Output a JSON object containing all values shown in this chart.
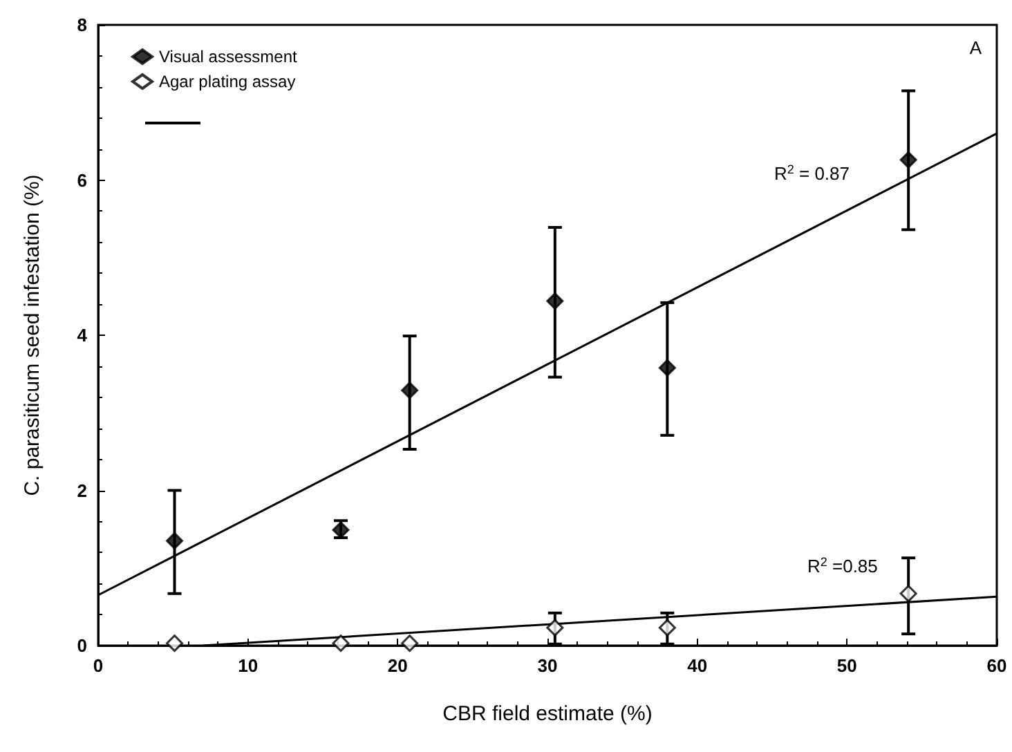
{
  "chart_data": {
    "type": "scatter",
    "xlabel": "CBR field estimate (%)",
    "ylabel": "C. parasiticum seed infestation (%)",
    "xlim": [
      0,
      60
    ],
    "xticks": [
      0,
      10,
      20,
      30,
      40,
      50,
      60
    ],
    "ylim": [
      0,
      8
    ],
    "yticks": [
      0,
      2,
      4,
      6,
      8
    ],
    "grid": false,
    "legend": "top left",
    "series": [
      {
        "name": "Visual assessment",
        "color": "#000000",
        "marker": "diamond",
        "x": [
          5.1,
          16.2,
          20.8,
          30.5,
          38.0,
          54.1
        ],
        "values": [
          1.35,
          1.49,
          3.29,
          4.44,
          3.58,
          6.26
        ],
        "errors": [
          [
            0.67,
            2.0
          ],
          [
            1.39,
            1.61
          ],
          [
            2.53,
            3.99
          ],
          [
            3.46,
            5.39
          ],
          [
            2.71,
            4.42
          ],
          [
            5.36,
            7.15
          ]
        ]
      },
      {
        "name": "Agar plating assay",
        "color": "#ffffff",
        "marker": "diamond",
        "x": [
          5.1,
          16.2,
          20.8,
          30.5,
          38.0,
          54.1
        ],
        "values": [
          0.03,
          0.03,
          0.03,
          0.23,
          0.23,
          0.67
        ],
        "errors": [
          null,
          null,
          null,
          [
            0.02,
            0.42
          ],
          [
            0.02,
            0.42
          ],
          [
            0.15,
            1.13
          ]
        ]
      },
      {
        "type": "line",
        "color": "#000000",
        "marker": "none",
        "line_style": "solid",
        "x": [
          0,
          60
        ],
        "values": [
          0.65,
          6.6
        ]
      },
      {
        "type": "line",
        "color": "#000000",
        "marker": "none",
        "line_style": "solid",
        "x": [
          7,
          60
        ],
        "values": [
          0,
          0.63
        ]
      }
    ],
    "annotations": [
      "A",
      "R$^{2}$ = 0.87",
      "R$^{2}$ =0.85"
    ]
  }
}
